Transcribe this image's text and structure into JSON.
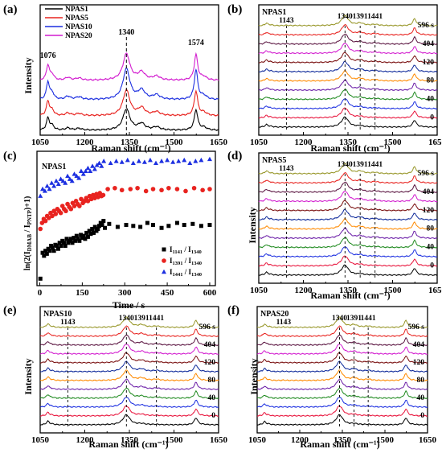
{
  "colors": {
    "black": "#000000",
    "red": "#e8231f",
    "blue": "#1c2fe0",
    "magenta": "#d21ccf",
    "olive": "#98972a",
    "darkpurple": "#5a1440",
    "maroon": "#7a1010",
    "orange": "#ff8a00",
    "purple": "#6c1fa8",
    "green": "#1f8a1f",
    "dkblue": "#0f2a9a",
    "crimson": "#e8143c"
  },
  "chart_data": [
    {
      "panel": "(a)",
      "type": "line",
      "xlabel": "Raman shift (cm⁻¹)",
      "ylabel": "Intensity",
      "xlim": [
        1050,
        1650
      ],
      "x_ticks": [
        "1050",
        "1200",
        "1350",
        "1500",
        "1650"
      ],
      "legend": [
        "NPAS1",
        "NPAS5",
        "NPAS10",
        "NPAS20"
      ],
      "legend_position": "top-left",
      "peak_labels": [
        {
          "x": 1076,
          "text": "1076"
        },
        {
          "x": 1340,
          "text": "1340"
        },
        {
          "x": 1574,
          "text": "1574"
        }
      ],
      "dashed_lines": [
        1340
      ],
      "series": [
        {
          "name": "NPAS1",
          "color": "black",
          "offset": 0.0,
          "height": 1.0
        },
        {
          "name": "NPAS5",
          "color": "red",
          "offset": 0.9,
          "height": 1.2
        },
        {
          "name": "NPAS10",
          "color": "blue",
          "offset": 1.9,
          "height": 1.45
        },
        {
          "name": "NPAS20",
          "color": "magenta",
          "offset": 3.1,
          "height": 1.25
        }
      ],
      "peaks": [
        [
          1076,
          1.35,
          6
        ],
        [
          1090,
          0.5,
          8
        ],
        [
          1143,
          0.25,
          10
        ],
        [
          1180,
          0.2,
          12
        ],
        [
          1340,
          2.4,
          14
        ],
        [
          1391,
          0.7,
          14
        ],
        [
          1441,
          0.35,
          14
        ],
        [
          1574,
          2.3,
          7
        ],
        [
          1600,
          0.3,
          12
        ]
      ]
    },
    {
      "panel": "(b)",
      "type": "line",
      "title": "NPAS1",
      "xlabel": "Raman shift (cm⁻¹)",
      "xlim": [
        1050,
        1650
      ],
      "x_ticks": [
        "1050",
        "1200",
        "1350",
        "1500",
        "1650"
      ],
      "peak_labels": [
        {
          "x": 1143,
          "text": "1143"
        },
        {
          "x": 1340,
          "text": "1340"
        },
        {
          "x": 1391,
          "text": "1391"
        },
        {
          "x": 1441,
          "text": "1441"
        }
      ],
      "dashed_lines": [
        1143,
        1340,
        1391,
        1441
      ],
      "time_labels": [
        "596 s",
        "404",
        "120",
        "80",
        "40",
        "0"
      ],
      "time_label_rows": [
        11,
        9,
        7,
        5,
        3,
        1
      ]
    },
    {
      "panel": "(c)",
      "type": "scatter",
      "title": "NPAS1",
      "xlabel": "Time / s",
      "ylabel": "ln(2(I_DMAB / I_PNTP)+1)",
      "xlim": [
        -10,
        620
      ],
      "x_ticks": [
        "0",
        "150",
        "300",
        "450",
        "600"
      ],
      "legend": [
        "I1141 / I1340",
        "I1391 / I1340",
        "I1441 / I1340"
      ],
      "legend_position": "bottom-right",
      "series": [
        {
          "name": "I1141 / I1340",
          "marker": "square",
          "color": "black",
          "x": [
            2,
            10,
            15,
            20,
            25,
            30,
            35,
            40,
            45,
            50,
            55,
            60,
            65,
            70,
            75,
            80,
            85,
            90,
            95,
            100,
            105,
            110,
            115,
            120,
            125,
            130,
            135,
            140,
            145,
            150,
            155,
            160,
            165,
            170,
            175,
            180,
            185,
            190,
            195,
            200,
            205,
            210,
            215,
            220,
            225,
            230,
            245,
            275,
            305,
            330,
            355,
            380,
            400,
            430,
            455,
            485,
            510,
            540,
            570,
            600
          ],
          "y": [
            0.22,
            0.48,
            0.45,
            0.5,
            0.47,
            0.52,
            0.5,
            0.55,
            0.53,
            0.5,
            0.56,
            0.55,
            0.52,
            0.58,
            0.55,
            0.6,
            0.58,
            0.55,
            0.62,
            0.58,
            0.6,
            0.62,
            0.58,
            0.63,
            0.6,
            0.65,
            0.62,
            0.6,
            0.66,
            0.63,
            0.65,
            0.62,
            0.68,
            0.64,
            0.7,
            0.67,
            0.72,
            0.68,
            0.74,
            0.7,
            0.72,
            0.75,
            0.78,
            0.76,
            0.8,
            0.73,
            0.77,
            0.74,
            0.76,
            0.75,
            0.74,
            0.78,
            0.76,
            0.73,
            0.75,
            0.78,
            0.76,
            0.77,
            0.75,
            0.76
          ]
        },
        {
          "name": "I1391 / I1340",
          "marker": "circle",
          "color": "red",
          "x": [
            2,
            8,
            14,
            20,
            26,
            32,
            38,
            44,
            50,
            56,
            62,
            68,
            74,
            80,
            86,
            92,
            98,
            104,
            110,
            116,
            122,
            128,
            134,
            140,
            146,
            152,
            158,
            164,
            170,
            176,
            182,
            188,
            194,
            200,
            206,
            212,
            218,
            224,
            240,
            265,
            290,
            320,
            345,
            375,
            400,
            430,
            455,
            485,
            515,
            545,
            575,
            600
          ],
          "y": [
            0.72,
            0.78,
            0.82,
            0.8,
            0.85,
            0.83,
            0.88,
            0.85,
            0.9,
            0.87,
            0.92,
            0.9,
            0.88,
            0.95,
            0.92,
            0.9,
            0.97,
            0.94,
            0.92,
            0.98,
            0.95,
            1.0,
            0.97,
            0.95,
            1.02,
            0.98,
            1.0,
            1.03,
            1.0,
            1.05,
            1.02,
            1.06,
            1.03,
            1.07,
            1.04,
            1.08,
            1.05,
            1.06,
            1.12,
            1.13,
            1.11,
            1.12,
            1.13,
            1.1,
            1.12,
            1.11,
            1.13,
            1.12,
            1.1,
            1.13,
            1.11,
            1.12
          ]
        },
        {
          "name": "I1441 / I1340",
          "marker": "triangle",
          "color": "blue",
          "x": [
            2,
            10,
            18,
            26,
            34,
            42,
            50,
            58,
            66,
            74,
            82,
            90,
            98,
            106,
            114,
            122,
            130,
            138,
            146,
            154,
            162,
            170,
            178,
            186,
            194,
            202,
            210,
            218,
            226,
            250,
            270,
            290,
            310,
            330,
            350,
            370,
            390,
            410,
            430,
            450,
            470,
            490,
            510,
            530,
            550,
            570,
            600
          ],
          "y": [
            1.05,
            1.12,
            1.1,
            1.15,
            1.12,
            1.18,
            1.15,
            1.2,
            1.17,
            1.22,
            1.2,
            1.18,
            1.25,
            1.22,
            1.2,
            1.27,
            1.25,
            1.23,
            1.3,
            1.27,
            1.3,
            1.33,
            1.3,
            1.35,
            1.32,
            1.36,
            1.38,
            1.35,
            1.4,
            1.38,
            1.4,
            1.39,
            1.41,
            1.38,
            1.4,
            1.39,
            1.41,
            1.38,
            1.4,
            1.41,
            1.39,
            1.4,
            1.41,
            1.38,
            1.4,
            1.41,
            1.42
          ]
        }
      ]
    },
    {
      "panel": "(d)",
      "type": "line",
      "title": "NPAS5",
      "xlabel": "Raman shift (cm⁻¹)",
      "ylabel": "Intensity",
      "xlim": [
        1050,
        1650
      ],
      "x_ticks": [
        "1050",
        "1200",
        "1350",
        "1500",
        "1650"
      ],
      "peak_labels": [
        {
          "x": 1143,
          "text": "1143"
        },
        {
          "x": 1340,
          "text": "1340"
        },
        {
          "x": 1391,
          "text": "1391"
        },
        {
          "x": 1441,
          "text": "1441"
        }
      ],
      "dashed_lines": [
        1143,
        1340,
        1391,
        1441
      ],
      "time_labels": [
        "596 s",
        "404",
        "120",
        "80",
        "40",
        "0"
      ],
      "time_label_rows": [
        11,
        9,
        7,
        5,
        3,
        1
      ]
    },
    {
      "panel": "(e)",
      "type": "line",
      "title": "NPAS10",
      "xlabel": "Raman shift (cm⁻¹)",
      "ylabel": "Intensity",
      "xlim": [
        1050,
        1650
      ],
      "x_ticks": [
        "1050",
        "1200",
        "1350",
        "1500",
        "1650"
      ],
      "peak_labels": [
        {
          "x": 1143,
          "text": "1143"
        },
        {
          "x": 1340,
          "text": "1340"
        },
        {
          "x": 1391,
          "text": "1391"
        },
        {
          "x": 1441,
          "text": "1441"
        }
      ],
      "dashed_lines": [
        1143,
        1340,
        1441
      ],
      "time_labels": [
        "596 s",
        "404",
        "120",
        "80",
        "40",
        "0"
      ],
      "time_label_rows": [
        11,
        9,
        7,
        5,
        3,
        1
      ]
    },
    {
      "panel": "(f)",
      "type": "line",
      "title": "NPAS20",
      "xlabel": "Raman shift (cm⁻¹)",
      "ylabel": "Intensity",
      "xlim": [
        1050,
        1650
      ],
      "x_ticks": [
        "1050",
        "1200",
        "1350",
        "1500",
        "1650"
      ],
      "peak_labels": [
        {
          "x": 1143,
          "text": "1143"
        },
        {
          "x": 1340,
          "text": "1340"
        },
        {
          "x": 1391,
          "text": "1391"
        },
        {
          "x": 1441,
          "text": "1441"
        }
      ],
      "dashed_lines": [
        1340,
        1391,
        1441
      ],
      "time_labels": [
        "596 s",
        "404",
        "120",
        "80",
        "40",
        "0"
      ],
      "time_label_rows": [
        11,
        9,
        7,
        5,
        3,
        1
      ]
    }
  ]
}
